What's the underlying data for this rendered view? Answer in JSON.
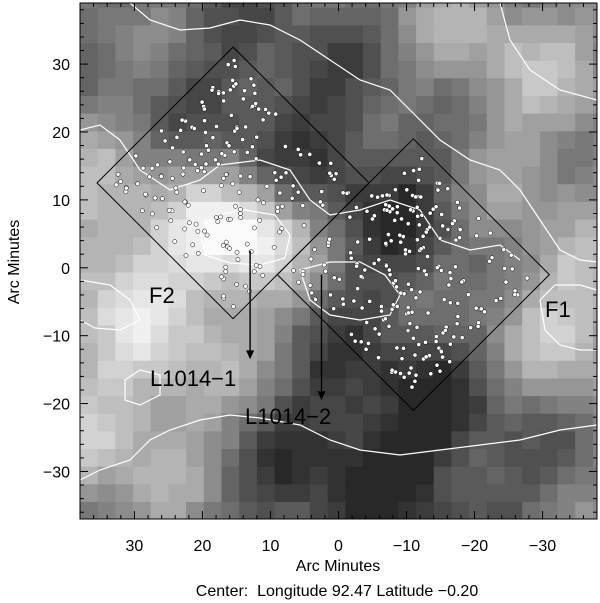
{
  "map": {
    "xlabel": "Arc Minutes",
    "ylabel": "Arc Minutes",
    "caption": "Center:  Longitude 92.47 Latitude −0.20",
    "x_range": [
      38,
      -38
    ],
    "y_range": [
      -37,
      39
    ],
    "x_ticks": [
      30,
      20,
      10,
      0,
      -10,
      -20,
      -30
    ],
    "x_tick_labels": [
      "30",
      "20",
      "10",
      "0",
      "−10",
      "−20",
      "−30"
    ],
    "y_ticks": [
      30,
      20,
      10,
      0,
      -10,
      -20,
      -30
    ],
    "y_tick_labels": [
      "30",
      "20",
      "10",
      "0",
      "−10",
      "−20",
      "−30"
    ],
    "colormap": "grayscale (dark = high extinction)",
    "contour_color": "#ffffff",
    "star_marker_color": "#ffffff"
  },
  "fields": [
    {
      "name": "F2",
      "label": "F2",
      "center": [
        15.5,
        12.5
      ],
      "half_diagonal": 20
    },
    {
      "name": "F1",
      "label": "F1",
      "center": [
        -11,
        -1
      ],
      "half_diagonal": 20
    }
  ],
  "annotations": [
    {
      "label": "L1014−1",
      "arrow_from": [
        13,
        2.5
      ],
      "arrow_to": [
        13,
        -13.5
      ]
    },
    {
      "label": "L1014−2",
      "arrow_from": [
        2.5,
        -1
      ],
      "arrow_to": [
        2.5,
        -19.5
      ]
    }
  ]
}
